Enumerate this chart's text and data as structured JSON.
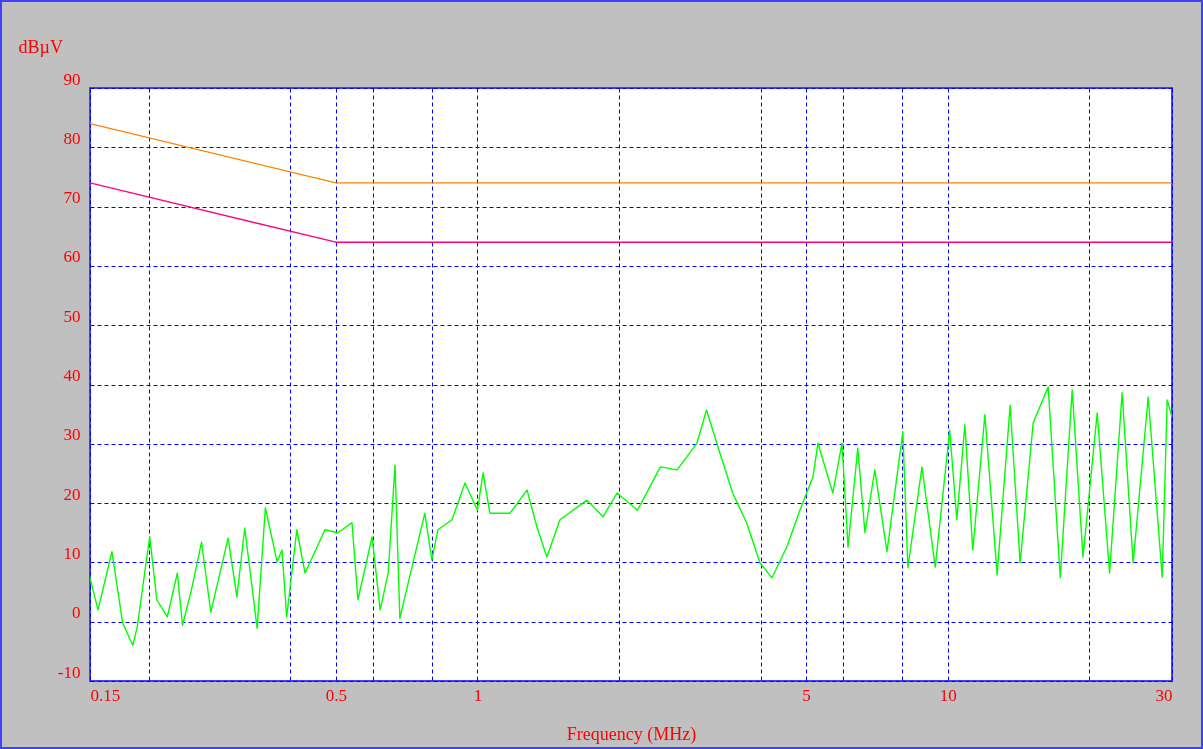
{
  "chart_data": {
    "type": "line",
    "xlabel": "Frequency (MHz)",
    "ylabel": "dBµV",
    "log": "x",
    "grid": true,
    "xlim": [
      0.15,
      30
    ],
    "ylim": [
      -10,
      90
    ],
    "xticks": [
      0.15,
      {
        "value": 0.2,
        "label": null
      },
      {
        "value": 0.4,
        "label": null
      },
      0.5,
      {
        "value": 0.6,
        "label": null
      },
      {
        "value": 0.8,
        "label": null
      },
      1,
      {
        "value": 2,
        "label": null
      },
      {
        "value": 4,
        "label": null
      },
      5,
      {
        "value": 6,
        "label": null
      },
      {
        "value": 8,
        "label": null
      },
      10,
      {
        "value": 20,
        "label": null
      },
      30
    ],
    "yticks": [
      -10,
      0,
      10,
      20,
      30,
      40,
      50,
      60,
      70,
      80,
      90
    ],
    "series": [
      {
        "color": "#00ff00",
        "x": [
          0.15,
          0.156,
          0.167,
          0.176,
          0.185,
          0.189,
          0.198,
          0.201,
          0.208,
          0.219,
          0.23,
          0.236,
          0.247,
          0.259,
          0.271,
          0.295,
          0.308,
          0.32,
          0.34,
          0.354,
          0.375,
          0.384,
          0.393,
          0.413,
          0.43,
          0.474,
          0.505,
          0.541,
          0.557,
          0.597,
          0.621,
          0.646,
          0.668,
          0.684,
          0.701,
          0.773,
          0.8,
          0.824,
          0.883,
          0.941,
          1.0,
          1.028,
          1.063,
          1.173,
          1.275,
          1.338,
          1.405,
          1.498,
          1.71,
          1.85,
          1.981,
          2.19,
          2.45,
          2.66,
          2.93,
          3.07,
          3.23,
          3.49,
          3.74,
          3.99,
          4.23,
          4.55,
          4.85,
          5.17,
          5.3,
          5.7,
          5.96,
          6.14,
          6.44,
          6.67,
          7.0,
          7.43,
          8.03,
          8.23,
          8.82,
          9.41,
          10.1,
          10.46,
          10.88,
          11.31,
          12.0,
          12.74,
          13.58,
          14.26,
          15.2,
          16.36,
          17.36,
          18.4,
          19.4,
          20.8,
          22.1,
          23.5,
          24.8,
          26.7,
          28.6,
          29.3,
          30
        ],
        "values": [
          7.4,
          2.0,
          11.8,
          -0.2,
          -4,
          -0.9,
          10.7,
          14.3,
          3.7,
          0.8,
          8.2,
          -0.6,
          5.7,
          13.4,
          1.6,
          14.1,
          4.2,
          15.8,
          -1.1,
          19.2,
          10.1,
          12.1,
          0.8,
          15.5,
          8.2,
          15.5,
          15.0,
          16.7,
          3.7,
          14.3,
          2.0,
          8.2,
          26.4,
          0.6,
          4.2,
          18.3,
          10.4,
          15.5,
          17.2,
          23.4,
          18.8,
          25.1,
          18.3,
          18.3,
          22.2,
          16.0,
          10.9,
          17.2,
          20.5,
          17.7,
          21.7,
          18.8,
          26.1,
          25.6,
          30.1,
          35.7,
          30.1,
          21.7,
          16.6,
          9.9,
          7.4,
          12.6,
          18.8,
          24.4,
          30.1,
          21.7,
          30.1,
          12.6,
          29.3,
          15.0,
          25.6,
          11.8,
          32.0,
          9.1,
          26.1,
          9.2,
          32.3,
          17.2,
          33.2,
          12.1,
          34.9,
          7.9,
          36.5,
          9.9,
          33.5,
          39.6,
          7.4,
          39.1,
          10.9,
          35.2,
          8.2,
          38.6,
          9.9,
          37.9,
          7.5,
          37.4,
          34.5
        ]
      },
      {
        "color": "#ff8000",
        "x": [
          0.15,
          0.5,
          30
        ],
        "values": [
          84,
          74,
          74
        ]
      },
      {
        "color": "#ff0080",
        "x": [
          0.15,
          0.5,
          30
        ],
        "values": [
          74,
          64,
          64
        ]
      }
    ]
  }
}
